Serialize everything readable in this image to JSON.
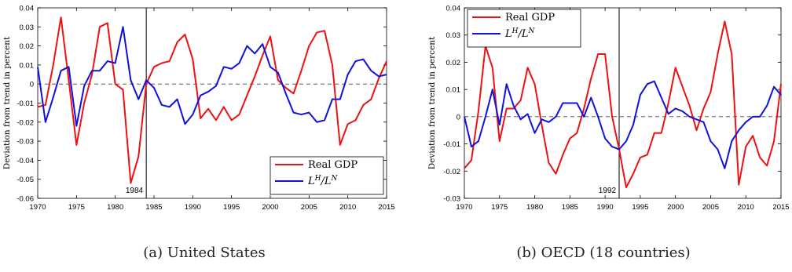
{
  "colors": {
    "gdp": "#ee1111",
    "ratio": "#1111dd",
    "axis": "#000000",
    "zero": "#444444"
  },
  "chart_data": [
    {
      "type": "line",
      "caption": "(a) United States",
      "ylabel": "Deviation from trend in percent",
      "xlim": [
        1970,
        2015
      ],
      "ylim": [
        -0.06,
        0.04
      ],
      "xticks": [
        1970,
        1975,
        1980,
        1985,
        1990,
        1995,
        2000,
        2005,
        2010,
        2015
      ],
      "yticks": [
        -0.06,
        -0.05,
        -0.04,
        -0.03,
        -0.02,
        -0.01,
        0,
        0.01,
        0.02,
        0.03,
        0.04
      ],
      "ytick_labels": [
        "-0.06",
        "-0.05",
        "-0.04",
        "-0.03",
        "-0.02",
        "-0.01",
        "0",
        "0.01",
        "0.02",
        "0.03",
        "0.04"
      ],
      "zero_line": "dashed",
      "vline": {
        "x": 1984,
        "label": "1984"
      },
      "legend": {
        "position": "bottom-right",
        "entries": [
          "Real GDP",
          "L^H/L^N"
        ]
      },
      "x": [
        1970,
        1971,
        1972,
        1973,
        1974,
        1975,
        1976,
        1977,
        1978,
        1979,
        1980,
        1981,
        1982,
        1983,
        1984,
        1985,
        1986,
        1987,
        1988,
        1989,
        1990,
        1991,
        1992,
        1993,
        1994,
        1995,
        1996,
        1997,
        1998,
        1999,
        2000,
        2001,
        2002,
        2003,
        2004,
        2005,
        2006,
        2007,
        2008,
        2009,
        2010,
        2011,
        2012,
        2013,
        2014,
        2015
      ],
      "series": [
        {
          "name": "Real GDP",
          "color_key": "gdp",
          "values": [
            -0.012,
            -0.011,
            0.01,
            0.035,
            0.002,
            -0.032,
            -0.01,
            0.005,
            0.03,
            0.032,
            0.0,
            -0.003,
            -0.052,
            -0.038,
            0.0,
            0.009,
            0.011,
            0.012,
            0.022,
            0.026,
            0.013,
            -0.018,
            -0.013,
            -0.019,
            -0.012,
            -0.019,
            -0.016,
            -0.006,
            0.004,
            0.015,
            0.025,
            0.002,
            -0.002,
            -0.005,
            0.007,
            0.02,
            0.027,
            0.028,
            0.01,
            -0.032,
            -0.021,
            -0.019,
            -0.011,
            -0.008,
            0.003,
            0.012
          ]
        },
        {
          "name": "L^H/L^N",
          "color_key": "ratio",
          "values": [
            0.009,
            -0.02,
            -0.007,
            0.007,
            0.009,
            -0.022,
            -0.001,
            0.007,
            0.007,
            0.012,
            0.011,
            0.03,
            0.002,
            -0.008,
            0.002,
            -0.002,
            -0.011,
            -0.012,
            -0.008,
            -0.021,
            -0.016,
            -0.006,
            -0.004,
            -0.001,
            0.009,
            0.008,
            0.011,
            0.02,
            0.016,
            0.021,
            0.009,
            0.006,
            -0.005,
            -0.015,
            -0.016,
            -0.015,
            -0.02,
            -0.019,
            -0.008,
            -0.008,
            0.005,
            0.012,
            0.013,
            0.007,
            0.004,
            0.005
          ]
        }
      ]
    },
    {
      "type": "line",
      "caption": "(b) OECD (18 countries)",
      "ylabel": "Deviation from trend in percent",
      "xlim": [
        1970,
        2015
      ],
      "ylim": [
        -0.03,
        0.04
      ],
      "xticks": [
        1970,
        1975,
        1980,
        1985,
        1990,
        1995,
        2000,
        2005,
        2010,
        2015
      ],
      "yticks": [
        -0.03,
        -0.02,
        -0.01,
        0,
        0.01,
        0.02,
        0.03,
        0.04
      ],
      "ytick_labels": [
        "-0.03",
        "-0.02",
        "-0.01",
        "0",
        "0.01",
        "0.02",
        "0.03",
        "0.04"
      ],
      "zero_line": "dashed",
      "vline": {
        "x": 1992,
        "label": "1992"
      },
      "legend": {
        "position": "top-left",
        "entries": [
          "Real GDP",
          "L^H/L^N"
        ]
      },
      "x": [
        1970,
        1971,
        1972,
        1973,
        1974,
        1975,
        1976,
        1977,
        1978,
        1979,
        1980,
        1981,
        1982,
        1983,
        1984,
        1985,
        1986,
        1987,
        1988,
        1989,
        1990,
        1991,
        1992,
        1993,
        1994,
        1995,
        1996,
        1997,
        1998,
        1999,
        2000,
        2001,
        2002,
        2003,
        2004,
        2005,
        2006,
        2007,
        2008,
        2009,
        2010,
        2011,
        2012,
        2013,
        2014,
        2015
      ],
      "series": [
        {
          "name": "Real GDP",
          "color_key": "gdp",
          "values": [
            -0.019,
            -0.016,
            0.002,
            0.026,
            0.018,
            -0.009,
            0.003,
            0.003,
            0.006,
            0.018,
            0.012,
            -0.003,
            -0.017,
            -0.021,
            -0.014,
            -0.008,
            -0.006,
            0.003,
            0.014,
            0.023,
            0.023,
            0.0,
            -0.012,
            -0.026,
            -0.021,
            -0.015,
            -0.014,
            -0.006,
            -0.006,
            0.005,
            0.018,
            0.011,
            0.004,
            -0.005,
            0.003,
            0.009,
            0.023,
            0.035,
            0.023,
            -0.025,
            -0.011,
            -0.007,
            -0.015,
            -0.018,
            -0.009,
            0.012
          ]
        },
        {
          "name": "L^H/L^N",
          "color_key": "ratio",
          "values": [
            0.0,
            -0.011,
            -0.009,
            0.0,
            0.01,
            -0.003,
            0.012,
            0.004,
            -0.001,
            0.001,
            -0.006,
            -0.001,
            -0.002,
            0.0,
            0.005,
            0.005,
            0.005,
            0.0,
            0.007,
            0.0,
            -0.008,
            -0.011,
            -0.012,
            -0.009,
            -0.003,
            0.008,
            0.012,
            0.013,
            0.007,
            0.001,
            0.003,
            0.002,
            0.0,
            -0.001,
            -0.002,
            -0.009,
            -0.012,
            -0.019,
            -0.009,
            -0.005,
            -0.002,
            0.0,
            0.0,
            0.004,
            0.011,
            0.008
          ]
        }
      ]
    }
  ]
}
